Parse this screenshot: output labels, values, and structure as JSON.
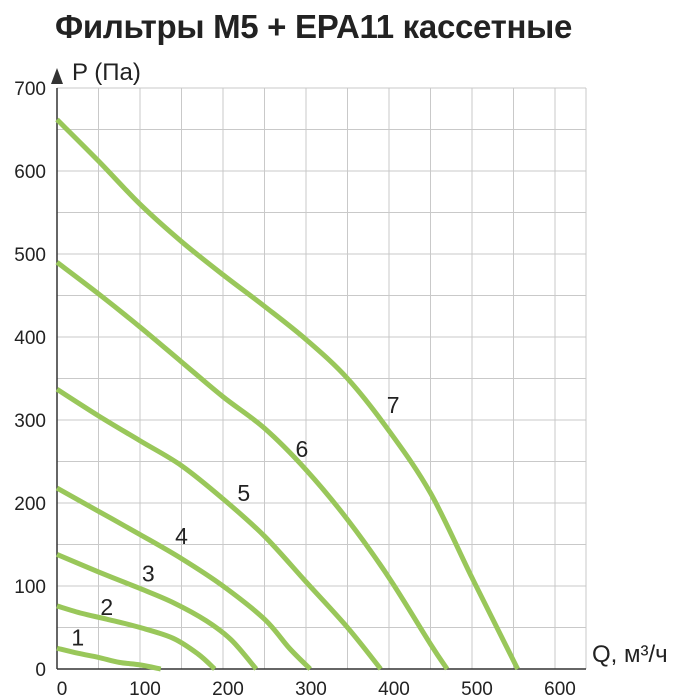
{
  "title": "Фильтры М5 + EPA11 кассетные",
  "chart_data": {
    "type": "line",
    "title": "Фильтры М5 + EPA11 кассетные",
    "xlabel": "Q, м³/ч",
    "ylabel": "P (Па)",
    "xlim": [
      0,
      630
    ],
    "ylim": [
      0,
      700
    ],
    "x_ticks": [
      0,
      100,
      200,
      300,
      400,
      500,
      600
    ],
    "y_ticks": [
      0,
      100,
      200,
      300,
      400,
      500,
      600,
      700
    ],
    "grid": true,
    "series_color": "#99c75a",
    "series": [
      {
        "name": "1",
        "label_at": [
          25,
          38
        ],
        "points": [
          [
            0,
            25
          ],
          [
            25,
            19
          ],
          [
            50,
            14
          ],
          [
            75,
            8
          ],
          [
            100,
            5
          ],
          [
            125,
            0
          ]
        ]
      },
      {
        "name": "2",
        "label_at": [
          60,
          75
        ],
        "points": [
          [
            0,
            76
          ],
          [
            30,
            67
          ],
          [
            60,
            60
          ],
          [
            100,
            50
          ],
          [
            140,
            37
          ],
          [
            170,
            18
          ],
          [
            190,
            0
          ]
        ]
      },
      {
        "name": "3",
        "label_at": [
          110,
          115
        ],
        "points": [
          [
            0,
            138
          ],
          [
            50,
            117
          ],
          [
            100,
            97
          ],
          [
            140,
            80
          ],
          [
            180,
            58
          ],
          [
            210,
            35
          ],
          [
            240,
            0
          ]
        ]
      },
      {
        "name": "4",
        "label_at": [
          150,
          160
        ],
        "points": [
          [
            0,
            218
          ],
          [
            50,
            190
          ],
          [
            100,
            162
          ],
          [
            150,
            133
          ],
          [
            200,
            100
          ],
          [
            250,
            60
          ],
          [
            280,
            25
          ],
          [
            305,
            0
          ]
        ]
      },
      {
        "name": "5",
        "label_at": [
          225,
          212
        ],
        "points": [
          [
            0,
            337
          ],
          [
            50,
            305
          ],
          [
            100,
            275
          ],
          [
            150,
            245
          ],
          [
            200,
            205
          ],
          [
            250,
            160
          ],
          [
            300,
            105
          ],
          [
            350,
            50
          ],
          [
            390,
            0
          ]
        ]
      },
      {
        "name": "6",
        "label_at": [
          295,
          265
        ],
        "points": [
          [
            0,
            490
          ],
          [
            50,
            452
          ],
          [
            100,
            412
          ],
          [
            150,
            370
          ],
          [
            200,
            328
          ],
          [
            250,
            290
          ],
          [
            300,
            240
          ],
          [
            350,
            180
          ],
          [
            400,
            110
          ],
          [
            450,
            30
          ],
          [
            470,
            0
          ]
        ]
      },
      {
        "name": "7",
        "label_at": [
          405,
          318
        ],
        "points": [
          [
            0,
            662
          ],
          [
            50,
            612
          ],
          [
            100,
            560
          ],
          [
            150,
            515
          ],
          [
            200,
            475
          ],
          [
            250,
            437
          ],
          [
            300,
            397
          ],
          [
            350,
            350
          ],
          [
            400,
            287
          ],
          [
            450,
            212
          ],
          [
            500,
            110
          ],
          [
            540,
            30
          ],
          [
            555,
            0
          ]
        ]
      }
    ]
  }
}
